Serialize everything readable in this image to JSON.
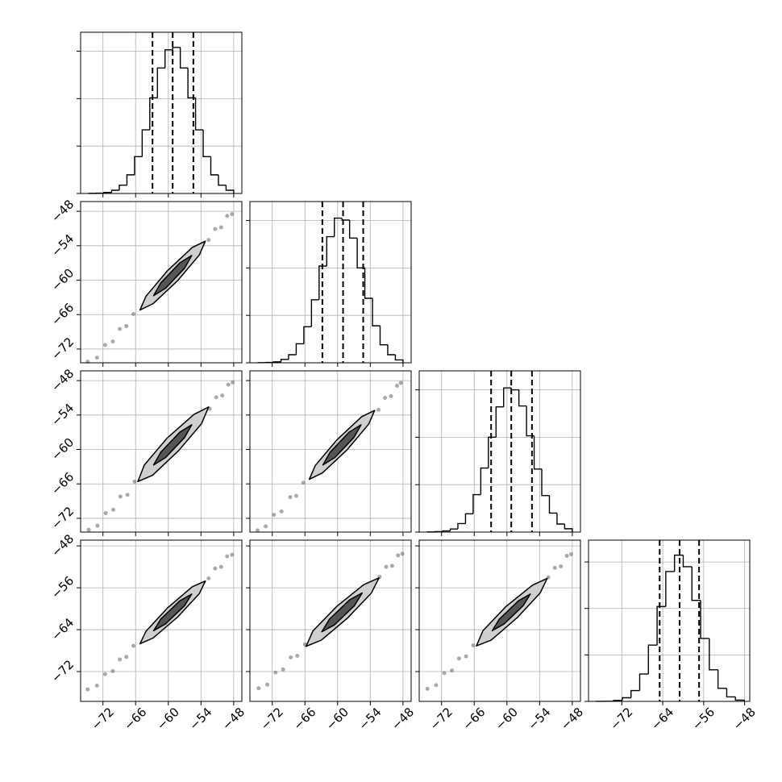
{
  "chart_data": {
    "type": "corner",
    "grid": true,
    "color": "#000000",
    "columns": [
      {
        "xlim": [
          -76.1,
          -46.5
        ],
        "xticks": [
          {
            "value": -72,
            "label": "−72"
          },
          {
            "value": -66,
            "label": "−66"
          },
          {
            "value": -60,
            "label": "−60"
          },
          {
            "value": -54,
            "label": "−54"
          },
          {
            "value": -48,
            "label": "−48"
          }
        ]
      },
      {
        "xlim": [
          -76.1,
          -46.5
        ],
        "xticks": [
          {
            "value": -72,
            "label": "−72"
          },
          {
            "value": -66,
            "label": "−66"
          },
          {
            "value": -60,
            "label": "−60"
          },
          {
            "value": -54,
            "label": "−54"
          },
          {
            "value": -48,
            "label": "−48"
          }
        ]
      },
      {
        "xlim": [
          -76.1,
          -46.5
        ],
        "xticks": [
          {
            "value": -72,
            "label": "−72"
          },
          {
            "value": -66,
            "label": "−66"
          },
          {
            "value": -60,
            "label": "−60"
          },
          {
            "value": -54,
            "label": "−54"
          },
          {
            "value": -48,
            "label": "−48"
          }
        ]
      },
      {
        "xlim": [
          -78.5,
          -47
        ],
        "xticks": [
          {
            "value": -72,
            "label": "−72"
          },
          {
            "value": -64,
            "label": "−64"
          },
          {
            "value": -56,
            "label": "−56"
          },
          {
            "value": -48,
            "label": "−48"
          }
        ]
      }
    ],
    "rows": [
      {
        "ylim": [
          -74.4,
          -46.3
        ],
        "yticks": [
          {
            "value": -72,
            "label": "−72"
          },
          {
            "value": -66,
            "label": "−66"
          },
          {
            "value": -60,
            "label": "−60"
          },
          {
            "value": -54,
            "label": "−54"
          },
          {
            "value": -48,
            "label": "−48"
          }
        ]
      },
      {
        "ylim": [
          -74.4,
          -46.3
        ],
        "yticks": [
          {
            "value": -72,
            "label": "−72"
          },
          {
            "value": -66,
            "label": "−66"
          },
          {
            "value": -60,
            "label": "−60"
          },
          {
            "value": -54,
            "label": "−54"
          },
          {
            "value": -48,
            "label": "−48"
          }
        ]
      },
      {
        "ylim": [
          -77.7,
          -46.9
        ],
        "yticks": [
          {
            "value": -72,
            "label": "−72"
          },
          {
            "value": -64,
            "label": "−64"
          },
          {
            "value": -56,
            "label": "−56"
          },
          {
            "value": -48,
            "label": "−48"
          }
        ]
      }
    ],
    "histograms": [
      {
        "bins": [
          -74.6,
          -73.2,
          -71.8,
          -70.4,
          -69.0,
          -67.6,
          -66.2,
          -64.8,
          -63.4,
          -62.0,
          -60.6,
          -59.2,
          -57.8,
          -56.4,
          -55.0,
          -53.6,
          -52.2,
          -50.8,
          -49.4,
          -48.0
        ],
        "counts": [
          2,
          7,
          23,
          68,
          175,
          393,
          776,
          1342,
          2018,
          2647,
          3030,
          3080,
          2647,
          2018,
          1342,
          776,
          393,
          175,
          68
        ],
        "quantiles": [
          -62.9,
          -59.2,
          -55.4
        ],
        "ylim": [
          0,
          3400
        ],
        "yticks": [
          0,
          1000,
          2000,
          3000
        ]
      },
      {
        "bins": [
          -74.6,
          -73.2,
          -71.8,
          -70.4,
          -69.0,
          -67.6,
          -66.2,
          -64.8,
          -63.4,
          -62.0,
          -60.6,
          -59.2,
          -57.8,
          -56.4,
          -55.0,
          -53.6,
          -52.2,
          -50.8,
          -49.4,
          -48.0
        ],
        "counts": [
          3,
          8,
          20,
          72,
          170,
          400,
          760,
          1330,
          2040,
          2660,
          3050,
          3010,
          2630,
          2000,
          1360,
          780,
          380,
          170,
          60
        ],
        "quantiles": [
          -62.8,
          -59.0,
          -55.3
        ],
        "ylim": [
          0,
          3400
        ],
        "yticks": [
          0,
          1000,
          2000,
          3000
        ]
      },
      {
        "bins": [
          -74.6,
          -73.2,
          -71.8,
          -70.4,
          -69.0,
          -67.6,
          -66.2,
          -64.8,
          -63.4,
          -62.0,
          -60.6,
          -59.2,
          -57.8,
          -56.4,
          -55.0,
          -53.6,
          -52.2,
          -50.8,
          -49.4,
          -48.0
        ],
        "counts": [
          2,
          9,
          25,
          65,
          180,
          385,
          790,
          1350,
          2000,
          2640,
          3040,
          3000,
          2660,
          2030,
          1330,
          770,
          400,
          170,
          70
        ],
        "quantiles": [
          -62.9,
          -59.2,
          -55.4
        ],
        "ylim": [
          0,
          3400
        ],
        "yticks": [
          0,
          1000,
          2000,
          3000
        ]
      },
      {
        "bins": [
          -77.0,
          -75.3,
          -73.6,
          -71.9,
          -70.2,
          -68.5,
          -66.8,
          -65.1,
          -63.4,
          -61.7,
          -60.0,
          -58.3,
          -56.6,
          -54.9,
          -53.2,
          -51.5,
          -49.8,
          -48.1
        ],
        "counts": [
          1,
          4,
          21,
          78,
          234,
          589,
          1212,
          2041,
          2794,
          3147,
          2898,
          2174,
          1355,
          680,
          280,
          97,
          27
        ],
        "quantiles": [
          -64.6,
          -60.7,
          -56.9
        ],
        "ylim": [
          0,
          3470
        ],
        "yticks": [
          0,
          1000,
          2000,
          3000
        ]
      }
    ],
    "scatters": [
      {
        "x": [
          -74.8,
          -73.1,
          -71.6,
          -70.2,
          -68.9,
          -67.7,
          -66.4,
          -52.6,
          -51.4,
          -50.3,
          -49.2,
          -48.3
        ],
        "y": [
          -74.2,
          -73.5,
          -71.3,
          -70.7,
          -68.5,
          -68.0,
          -65.9,
          -53.0,
          -51.1,
          -50.8,
          -48.8,
          -48.5
        ],
        "contours": [
          {
            "x": [
              -53.2,
              -54.3,
              -58.3,
              -62.8,
              -65.2,
              -64.1,
              -60.1,
              -55.6
            ],
            "y": [
              -53.2,
              -55.6,
              -60.1,
              -64.1,
              -65.2,
              -62.8,
              -58.3,
              -54.3
            ]
          },
          {
            "x": [
              -55.7,
              -57.0,
              -60.5,
              -62.7,
              -61.4,
              -57.9
            ],
            "y": [
              -55.7,
              -57.9,
              -61.4,
              -62.7,
              -60.5,
              -57.0
            ]
          }
        ]
      },
      {
        "x": [
          -74.6,
          -73.0,
          -71.5,
          -70.1,
          -68.8,
          -67.5,
          -66.2,
          -52.4,
          -51.2,
          -50.1,
          -49.0,
          -48.2
        ],
        "y": [
          -74.0,
          -73.3,
          -71.1,
          -70.5,
          -68.2,
          -67.9,
          -65.6,
          -52.9,
          -50.9,
          -50.6,
          -48.7,
          -48.3
        ],
        "contours": [
          {
            "x": [
              -52.6,
              -53.9,
              -58.1,
              -62.9,
              -65.6,
              -64.4,
              -60.2,
              -55.3
            ],
            "y": [
              -52.6,
              -55.5,
              -60.2,
              -64.5,
              -65.6,
              -62.7,
              -58.0,
              -53.9
            ]
          },
          {
            "x": [
              -55.7,
              -57.0,
              -60.5,
              -62.7,
              -61.4,
              -57.9
            ],
            "y": [
              -55.7,
              -57.9,
              -61.4,
              -62.7,
              -60.5,
              -57.0
            ]
          }
        ]
      },
      {
        "x": [
          -74.7,
          -73.2,
          -71.7,
          -70.3,
          -68.7,
          -67.6,
          -66.3,
          -52.5,
          -51.3,
          -50.2,
          -49.1,
          -48.4
        ],
        "y": [
          -74.1,
          -73.4,
          -71.4,
          -70.8,
          -68.3,
          -68.1,
          -65.8,
          -53.1,
          -51.0,
          -50.7,
          -48.9,
          -48.4
        ],
        "contours": [
          {
            "x": [
              -53.2,
              -54.3,
              -58.3,
              -62.8,
              -65.2,
              -64.1,
              -60.1,
              -55.6
            ],
            "y": [
              -53.2,
              -55.6,
              -60.1,
              -64.1,
              -65.2,
              -62.8,
              -58.3,
              -54.3
            ]
          },
          {
            "x": [
              -55.7,
              -57.0,
              -60.5,
              -62.7,
              -61.4,
              -57.9
            ],
            "y": [
              -55.7,
              -57.9,
              -61.4,
              -62.7,
              -60.5,
              -57.0
            ]
          }
        ]
      },
      {
        "x": [
          -74.8,
          -73.1,
          -71.6,
          -70.2,
          -68.9,
          -67.7,
          -66.4,
          -52.6,
          -51.4,
          -50.3,
          -49.2,
          -48.3
        ],
        "y": [
          -75.4,
          -74.7,
          -72.5,
          -71.9,
          -69.7,
          -69.2,
          -67.1,
          -54.2,
          -52.3,
          -52.0,
          -50.0,
          -49.7
        ],
        "contours": [
          {
            "x": [
              -53.2,
              -54.3,
              -58.3,
              -62.8,
              -65.2,
              -64.1,
              -60.1,
              -55.6
            ],
            "y": [
              -54.7,
              -57.1,
              -61.6,
              -65.6,
              -66.7,
              -64.3,
              -59.8,
              -55.8
            ]
          },
          {
            "x": [
              -55.7,
              -57.0,
              -60.5,
              -62.7,
              -61.4,
              -57.9
            ],
            "y": [
              -57.2,
              -59.4,
              -62.9,
              -64.2,
              -62.0,
              -58.5
            ]
          }
        ]
      },
      {
        "x": [
          -74.5,
          -72.9,
          -71.4,
          -70.0,
          -68.6,
          -67.4,
          -66.0,
          -52.3,
          -51.1,
          -50.0,
          -48.9,
          -48.1
        ],
        "y": [
          -75.2,
          -74.5,
          -72.2,
          -71.6,
          -69.3,
          -69.0,
          -66.8,
          -53.9,
          -52.0,
          -51.8,
          -49.8,
          -49.5
        ],
        "contours": [
          {
            "x": [
              -52.4,
              -53.8,
              -58.2,
              -63.0,
              -65.8,
              -64.5,
              -60.1,
              -55.2
            ],
            "y": [
              -54.1,
              -57.0,
              -61.8,
              -66.0,
              -67.2,
              -64.2,
              -59.5,
              -55.4
            ]
          },
          {
            "x": [
              -55.5,
              -56.9,
              -60.6,
              -62.9,
              -61.5,
              -57.8
            ],
            "y": [
              -57.0,
              -59.4,
              -63.1,
              -64.4,
              -62.0,
              -58.3
            ]
          }
        ]
      },
      {
        "x": [
          -74.6,
          -73.0,
          -71.5,
          -70.1,
          -68.8,
          -67.5,
          -66.2,
          -52.4,
          -51.2,
          -50.1,
          -49.0,
          -48.2
        ],
        "y": [
          -75.3,
          -74.6,
          -72.3,
          -71.8,
          -69.5,
          -69.1,
          -67.0,
          -54.0,
          -52.2,
          -51.9,
          -49.9,
          -49.6
        ],
        "contours": [
          {
            "x": [
              -52.6,
              -53.9,
              -58.1,
              -62.9,
              -65.6,
              -64.4,
              -60.2,
              -55.3
            ],
            "y": [
              -54.2,
              -57.0,
              -61.7,
              -66.0,
              -67.1,
              -64.2,
              -59.6,
              -55.5
            ]
          },
          {
            "x": [
              -55.7,
              -57.0,
              -60.5,
              -62.7,
              -61.4,
              -57.9
            ],
            "y": [
              -57.2,
              -59.4,
              -62.9,
              -64.2,
              -62.0,
              -58.5
            ]
          }
        ]
      }
    ]
  }
}
